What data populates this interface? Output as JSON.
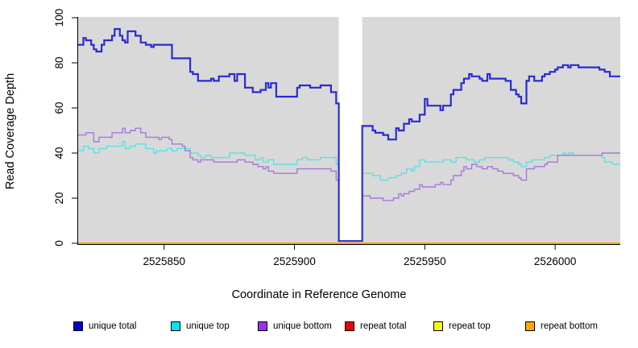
{
  "chart_data": {
    "type": "line",
    "subtype": "step-after",
    "title": "",
    "xlabel": "Coordinate in Reference Genome",
    "ylabel": "Read Coverage Depth",
    "xlim": [
      2525817,
      2526025
    ],
    "ylim": [
      0,
      100
    ],
    "x_ticks": [
      2525850,
      2525900,
      2525950,
      2526000
    ],
    "y_ticks": [
      0,
      20,
      40,
      60,
      80,
      100
    ],
    "grid": false,
    "plot_background": "#d9d9d9",
    "gap_region": {
      "x_start": 2525917,
      "x_end": 2525926,
      "color": "#ffffff"
    },
    "series": [
      {
        "name": "repeat total",
        "color": "#dd0000",
        "width": 1.4,
        "segments": [
          [
            [
              2525817,
              0
            ],
            [
              2526025,
              0
            ]
          ]
        ]
      },
      {
        "name": "repeat top",
        "color": "#ffff00",
        "width": 1.4,
        "segments": [
          [
            [
              2525817,
              0
            ],
            [
              2526025,
              0
            ]
          ]
        ]
      },
      {
        "name": "repeat bottom",
        "color": "#ffa500",
        "width": 2,
        "segments": [
          [
            [
              2525817,
              0
            ],
            [
              2526025,
              0
            ]
          ]
        ]
      },
      {
        "name": "unique top",
        "color": "#5ee0e3",
        "width": 1.4,
        "segments": [
          [
            [
              2525817,
              41
            ],
            [
              2525819,
              43
            ],
            [
              2525821,
              42
            ],
            [
              2525823,
              40
            ],
            [
              2525825,
              42
            ],
            [
              2525828,
              43
            ],
            [
              2525834,
              45
            ],
            [
              2525835,
              42
            ],
            [
              2525837,
              43
            ],
            [
              2525839,
              44
            ],
            [
              2525843,
              42
            ],
            [
              2525846,
              40
            ],
            [
              2525847,
              41
            ],
            [
              2525851,
              42
            ],
            [
              2525853,
              41
            ],
            [
              2525855,
              42
            ],
            [
              2525860,
              40
            ],
            [
              2525863,
              39
            ],
            [
              2525864,
              38
            ],
            [
              2525866,
              39
            ],
            [
              2525868,
              38
            ],
            [
              2525875,
              40
            ],
            [
              2525881,
              39
            ],
            [
              2525885,
              37
            ],
            [
              2525887,
              38
            ],
            [
              2525888,
              36
            ],
            [
              2525890,
              37
            ],
            [
              2525892,
              35
            ],
            [
              2525901,
              37
            ],
            [
              2525903,
              38
            ],
            [
              2525905,
              37
            ],
            [
              2525910,
              38
            ],
            [
              2525916,
              35
            ],
            [
              2525917,
              35
            ]
          ],
          [
            [
              2525926,
              31
            ],
            [
              2525930,
              30
            ],
            [
              2525933,
              28
            ],
            [
              2525936,
              29
            ],
            [
              2525939,
              30
            ],
            [
              2525941,
              31
            ],
            [
              2525943,
              33
            ],
            [
              2525945,
              32
            ],
            [
              2525946,
              34
            ],
            [
              2525948,
              37
            ],
            [
              2525950,
              36
            ],
            [
              2525957,
              37
            ],
            [
              2525960,
              36
            ],
            [
              2525962,
              38
            ],
            [
              2525966,
              37
            ],
            [
              2525969,
              36
            ],
            [
              2525971,
              37
            ],
            [
              2525973,
              38
            ],
            [
              2525982,
              37
            ],
            [
              2525984,
              36
            ],
            [
              2525986,
              35
            ],
            [
              2525987,
              34
            ],
            [
              2525989,
              36
            ],
            [
              2525991,
              37
            ],
            [
              2525996,
              38
            ],
            [
              2525998,
              39
            ],
            [
              2526003,
              40
            ],
            [
              2526004,
              39
            ],
            [
              2526005,
              40
            ],
            [
              2526007,
              39
            ],
            [
              2526018,
              38
            ],
            [
              2526019,
              36
            ],
            [
              2526022,
              35
            ],
            [
              2526025,
              35
            ]
          ]
        ]
      },
      {
        "name": "unique bottom",
        "color": "#a678dc",
        "width": 1.4,
        "segments": [
          [
            [
              2525817,
              48
            ],
            [
              2525820,
              49
            ],
            [
              2525823,
              45
            ],
            [
              2525825,
              47
            ],
            [
              2525830,
              49
            ],
            [
              2525834,
              51
            ],
            [
              2525835,
              49
            ],
            [
              2525837,
              50
            ],
            [
              2525839,
              51
            ],
            [
              2525841,
              49
            ],
            [
              2525843,
              47
            ],
            [
              2525848,
              46
            ],
            [
              2525849,
              47
            ],
            [
              2525852,
              46
            ],
            [
              2525853,
              44
            ],
            [
              2525857,
              43
            ],
            [
              2525858,
              41
            ],
            [
              2525860,
              38
            ],
            [
              2525861,
              37
            ],
            [
              2525863,
              36
            ],
            [
              2525864,
              37
            ],
            [
              2525869,
              36
            ],
            [
              2525876,
              36
            ],
            [
              2525878,
              37
            ],
            [
              2525881,
              36
            ],
            [
              2525884,
              35
            ],
            [
              2525886,
              34
            ],
            [
              2525888,
              33
            ],
            [
              2525889,
              34
            ],
            [
              2525890,
              32
            ],
            [
              2525892,
              31
            ],
            [
              2525901,
              33
            ],
            [
              2525914,
              32
            ],
            [
              2525916,
              28
            ],
            [
              2525917,
              28
            ]
          ],
          [
            [
              2525926,
              21
            ],
            [
              2525929,
              20
            ],
            [
              2525934,
              19
            ],
            [
              2525938,
              20
            ],
            [
              2525940,
              22
            ],
            [
              2525941,
              21
            ],
            [
              2525942,
              22
            ],
            [
              2525944,
              23
            ],
            [
              2525946,
              24
            ],
            [
              2525948,
              26
            ],
            [
              2525949,
              25
            ],
            [
              2525954,
              26
            ],
            [
              2525956,
              27
            ],
            [
              2525957,
              26
            ],
            [
              2525960,
              28
            ],
            [
              2525961,
              30
            ],
            [
              2525964,
              32
            ],
            [
              2525965,
              34
            ],
            [
              2525966,
              33
            ],
            [
              2525968,
              35
            ],
            [
              2525970,
              34
            ],
            [
              2525972,
              33
            ],
            [
              2525974,
              34
            ],
            [
              2525976,
              33
            ],
            [
              2525978,
              32
            ],
            [
              2525980,
              31
            ],
            [
              2525984,
              30
            ],
            [
              2525986,
              29
            ],
            [
              2525987,
              28
            ],
            [
              2525989,
              33
            ],
            [
              2525992,
              34
            ],
            [
              2525996,
              35
            ],
            [
              2525997,
              36
            ],
            [
              2526001,
              39
            ],
            [
              2526018,
              40
            ],
            [
              2526025,
              40
            ]
          ]
        ]
      },
      {
        "name": "unique total",
        "color": "#2a2ad4",
        "width": 2.2,
        "segments": [
          [
            [
              2525817,
              88
            ],
            [
              2525819,
              91
            ],
            [
              2525820,
              90
            ],
            [
              2525822,
              88
            ],
            [
              2525823,
              86
            ],
            [
              2525824,
              85
            ],
            [
              2525826,
              88
            ],
            [
              2525827,
              90
            ],
            [
              2525830,
              92
            ],
            [
              2525831,
              95
            ],
            [
              2525833,
              92
            ],
            [
              2525834,
              90
            ],
            [
              2525835,
              89
            ],
            [
              2525836,
              94
            ],
            [
              2525839,
              92
            ],
            [
              2525841,
              89
            ],
            [
              2525843,
              88
            ],
            [
              2525845,
              87
            ],
            [
              2525846,
              88
            ],
            [
              2525853,
              82
            ],
            [
              2525860,
              76
            ],
            [
              2525861,
              75
            ],
            [
              2525863,
              72
            ],
            [
              2525868,
              73
            ],
            [
              2525869,
              72
            ],
            [
              2525871,
              74
            ],
            [
              2525875,
              75
            ],
            [
              2525877,
              72
            ],
            [
              2525878,
              75
            ],
            [
              2525881,
              69
            ],
            [
              2525884,
              67
            ],
            [
              2525887,
              68
            ],
            [
              2525889,
              71
            ],
            [
              2525890,
              69
            ],
            [
              2525891,
              71
            ],
            [
              2525893,
              65
            ],
            [
              2525901,
              69
            ],
            [
              2525902,
              70
            ],
            [
              2525906,
              69
            ],
            [
              2525910,
              70
            ],
            [
              2525914,
              67
            ],
            [
              2525916,
              62
            ],
            [
              2525917,
              1
            ],
            [
              2525926,
              52
            ],
            [
              2525930,
              50
            ],
            [
              2525931,
              49
            ],
            [
              2525934,
              48
            ],
            [
              2525936,
              46
            ],
            [
              2525939,
              51
            ],
            [
              2525940,
              50
            ],
            [
              2525942,
              53
            ],
            [
              2525944,
              55
            ],
            [
              2525945,
              54
            ],
            [
              2525948,
              57
            ],
            [
              2525950,
              64
            ],
            [
              2525951,
              61
            ],
            [
              2525956,
              59
            ],
            [
              2525957,
              61
            ],
            [
              2525960,
              66
            ],
            [
              2525961,
              68
            ],
            [
              2525964,
              71
            ],
            [
              2525965,
              73
            ],
            [
              2525967,
              75
            ],
            [
              2525968,
              74
            ],
            [
              2525971,
              73
            ],
            [
              2525972,
              72
            ],
            [
              2525974,
              75
            ],
            [
              2525975,
              73
            ],
            [
              2525981,
              72
            ],
            [
              2525983,
              68
            ],
            [
              2525985,
              66
            ],
            [
              2525986,
              65
            ],
            [
              2525987,
              62
            ],
            [
              2525989,
              72
            ],
            [
              2525990,
              74
            ],
            [
              2525992,
              72
            ],
            [
              2525995,
              74
            ],
            [
              2525996,
              75
            ],
            [
              2525998,
              76
            ],
            [
              2526000,
              77
            ],
            [
              2526001,
              78
            ],
            [
              2526003,
              79
            ],
            [
              2526005,
              78
            ],
            [
              2526006,
              79
            ],
            [
              2526009,
              78
            ],
            [
              2526017,
              77
            ],
            [
              2526019,
              76
            ],
            [
              2526021,
              74
            ],
            [
              2526025,
              74
            ]
          ]
        ]
      }
    ],
    "legend_position": "bottom"
  },
  "legend": {
    "items": [
      {
        "label": "unique total",
        "color": "#0000cd"
      },
      {
        "label": "unique top",
        "color": "#00e5ee"
      },
      {
        "label": "unique bottom",
        "color": "#9a32e8"
      },
      {
        "label": "repeat total",
        "color": "#ee0000"
      },
      {
        "label": "repeat top",
        "color": "#ffff00"
      },
      {
        "label": "repeat bottom",
        "color": "#ffa500"
      }
    ]
  }
}
